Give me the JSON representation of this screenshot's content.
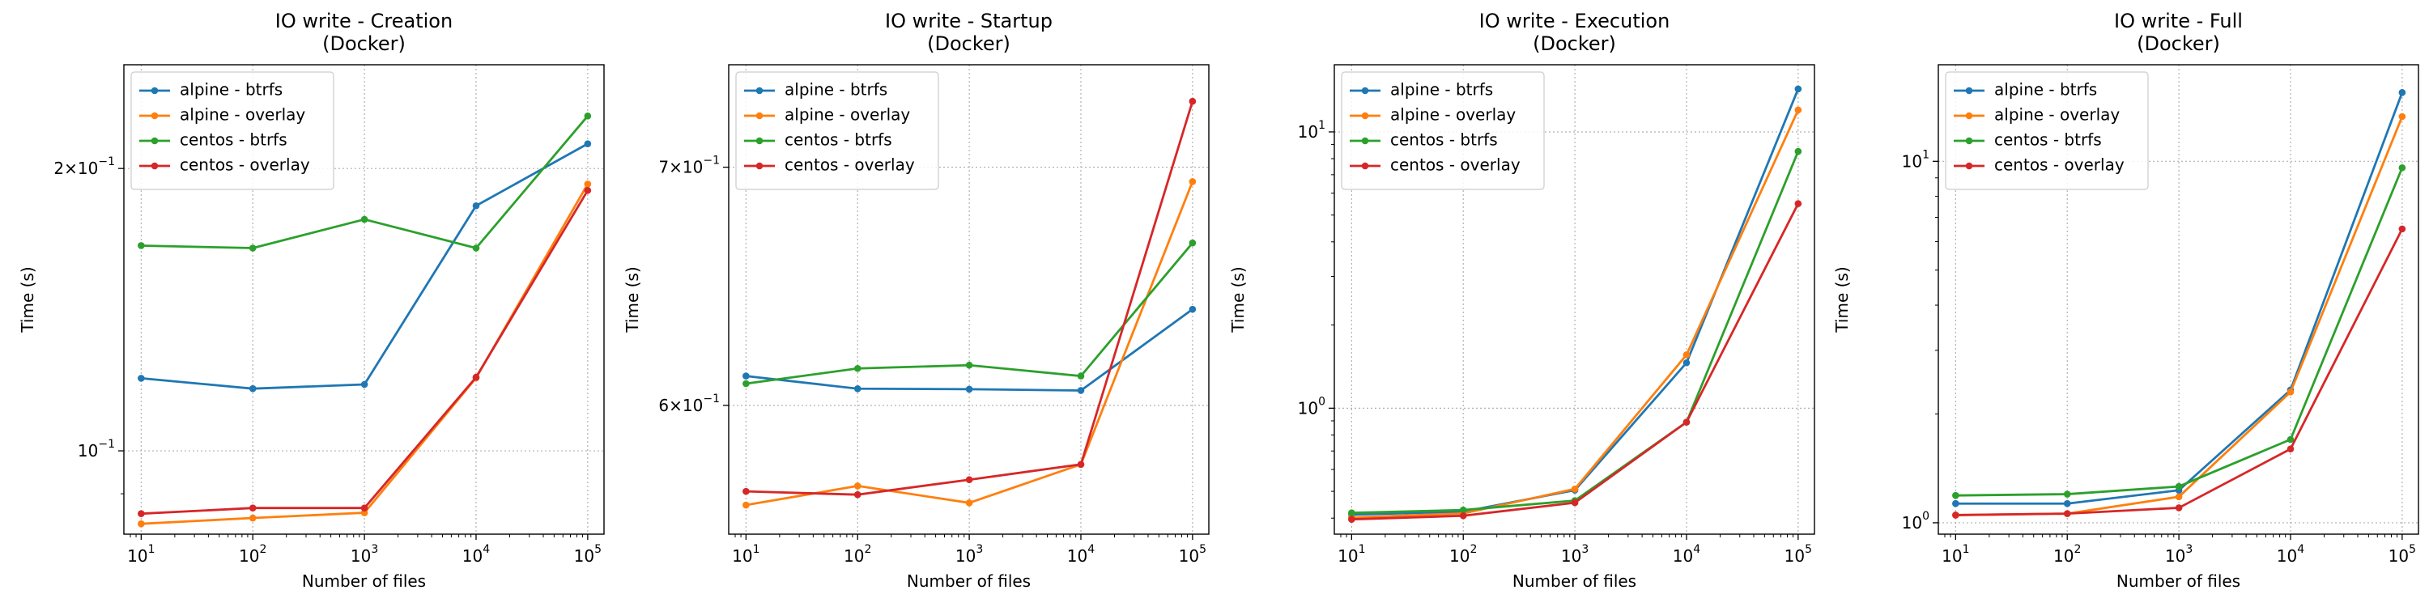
{
  "chart_data": [
    {
      "type": "line",
      "title": "IO write - Creation\n(Docker)",
      "xlabel": "Number of files",
      "ylabel": "Time (s)",
      "xscale": "log",
      "yscale": "log",
      "xlim": [
        7,
        140000
      ],
      "ylim": [
        0.0815,
        0.258
      ],
      "grid": true,
      "legend_position": "top-left",
      "x": [
        10,
        100,
        1000,
        10000,
        100000
      ],
      "xticks": [
        {
          "value": 10,
          "label": "10^1"
        },
        {
          "value": 100,
          "label": "10^2"
        },
        {
          "value": 1000,
          "label": "10^3"
        },
        {
          "value": 10000,
          "label": "10^4"
        },
        {
          "value": 100000,
          "label": "10^5"
        }
      ],
      "yticks": [
        {
          "value": 0.1,
          "label": "10^-1"
        },
        {
          "value": 0.2,
          "label": "2×10^-1"
        }
      ],
      "series": [
        {
          "name": "alpine - btrfs",
          "color": "#1f77b4",
          "values": [
            0.1195,
            0.1165,
            0.1177,
            0.1825,
            0.2125
          ]
        },
        {
          "name": "alpine - overlay",
          "color": "#ff7f0e",
          "values": [
            0.0836,
            0.0848,
            0.0859,
            0.1196,
            0.1925
          ]
        },
        {
          "name": "centos - btrfs",
          "color": "#2ca02c",
          "values": [
            0.1655,
            0.1645,
            0.1765,
            0.1645,
            0.2275
          ]
        },
        {
          "name": "centos - overlay",
          "color": "#d62728",
          "values": [
            0.0857,
            0.0869,
            0.0869,
            0.1198,
            0.1895
          ]
        }
      ]
    },
    {
      "type": "line",
      "title": "IO write - Startup\n(Docker)",
      "xlabel": "Number of files",
      "ylabel": "Time (s)",
      "xscale": "log",
      "yscale": "log",
      "xlim": [
        7,
        140000
      ],
      "ylim": [
        0.552,
        0.748
      ],
      "grid": true,
      "legend_position": "top-left",
      "x": [
        10,
        100,
        1000,
        10000,
        100000
      ],
      "xticks": [
        {
          "value": 10,
          "label": "10^1"
        },
        {
          "value": 100,
          "label": "10^2"
        },
        {
          "value": 1000,
          "label": "10^3"
        },
        {
          "value": 10000,
          "label": "10^4"
        },
        {
          "value": 100000,
          "label": "10^5"
        }
      ],
      "yticks": [
        {
          "value": 0.6,
          "label": "6×10^-1"
        },
        {
          "value": 0.7,
          "label": "7×10^-1"
        }
      ],
      "series": [
        {
          "name": "alpine - btrfs",
          "color": "#1f77b4",
          "values": [
            0.6115,
            0.6065,
            0.6063,
            0.6058,
            0.6385
          ]
        },
        {
          "name": "alpine - overlay",
          "color": "#ff7f0e",
          "values": [
            0.5625,
            0.5695,
            0.5633,
            0.5775,
            0.6935
          ]
        },
        {
          "name": "centos - btrfs",
          "color": "#2ca02c",
          "values": [
            0.6085,
            0.6145,
            0.6158,
            0.6115,
            0.6665
          ]
        },
        {
          "name": "centos - overlay",
          "color": "#d62728",
          "values": [
            0.5675,
            0.5663,
            0.5718,
            0.5775,
            0.7305
          ]
        }
      ]
    },
    {
      "type": "line",
      "title": "IO write - Execution\n(Docker)",
      "xlabel": "Number of files",
      "ylabel": "Time (s)",
      "xscale": "log",
      "yscale": "log",
      "xlim": [
        7,
        140000
      ],
      "ylim": [
        0.35,
        17.5
      ],
      "grid": true,
      "legend_position": "top-left",
      "x": [
        10,
        100,
        1000,
        10000,
        100000
      ],
      "xticks": [
        {
          "value": 10,
          "label": "10^1"
        },
        {
          "value": 100,
          "label": "10^2"
        },
        {
          "value": 1000,
          "label": "10^3"
        },
        {
          "value": 10000,
          "label": "10^4"
        },
        {
          "value": 100000,
          "label": "10^5"
        }
      ],
      "yticks": [
        {
          "value": 1,
          "label": "10^0"
        },
        {
          "value": 10,
          "label": "10^1"
        }
      ],
      "series": [
        {
          "name": "alpine - btrfs",
          "color": "#1f77b4",
          "values": [
            0.412,
            0.422,
            0.505,
            1.46,
            14.3
          ]
        },
        {
          "name": "alpine - overlay",
          "color": "#ff7f0e",
          "values": [
            0.402,
            0.416,
            0.51,
            1.56,
            12.0
          ]
        },
        {
          "name": "centos - btrfs",
          "color": "#2ca02c",
          "values": [
            0.418,
            0.428,
            0.463,
            0.89,
            8.5
          ]
        },
        {
          "name": "centos - overlay",
          "color": "#d62728",
          "values": [
            0.396,
            0.408,
            0.455,
            0.89,
            5.5
          ]
        }
      ]
    },
    {
      "type": "line",
      "title": "IO write - Full\n(Docker)",
      "xlabel": "Number of files",
      "ylabel": "Time (s)",
      "xscale": "log",
      "yscale": "log",
      "xlim": [
        7,
        140000
      ],
      "ylim": [
        0.93,
        18.5
      ],
      "grid": true,
      "legend_position": "top-left",
      "x": [
        10,
        100,
        1000,
        10000,
        100000
      ],
      "xticks": [
        {
          "value": 10,
          "label": "10^1"
        },
        {
          "value": 100,
          "label": "10^2"
        },
        {
          "value": 1000,
          "label": "10^3"
        },
        {
          "value": 10000,
          "label": "10^4"
        },
        {
          "value": 100000,
          "label": "10^5"
        }
      ],
      "yticks": [
        {
          "value": 1,
          "label": "10^0"
        },
        {
          "value": 10,
          "label": "10^1"
        }
      ],
      "series": [
        {
          "name": "alpine - btrfs",
          "color": "#1f77b4",
          "values": [
            1.13,
            1.13,
            1.23,
            2.33,
            15.5
          ]
        },
        {
          "name": "alpine - overlay",
          "color": "#ff7f0e",
          "values": [
            1.05,
            1.06,
            1.18,
            2.3,
            13.3
          ]
        },
        {
          "name": "centos - btrfs",
          "color": "#2ca02c",
          "values": [
            1.19,
            1.2,
            1.26,
            1.7,
            9.6
          ]
        },
        {
          "name": "centos - overlay",
          "color": "#d62728",
          "values": [
            1.05,
            1.06,
            1.1,
            1.6,
            6.5
          ]
        }
      ]
    }
  ]
}
